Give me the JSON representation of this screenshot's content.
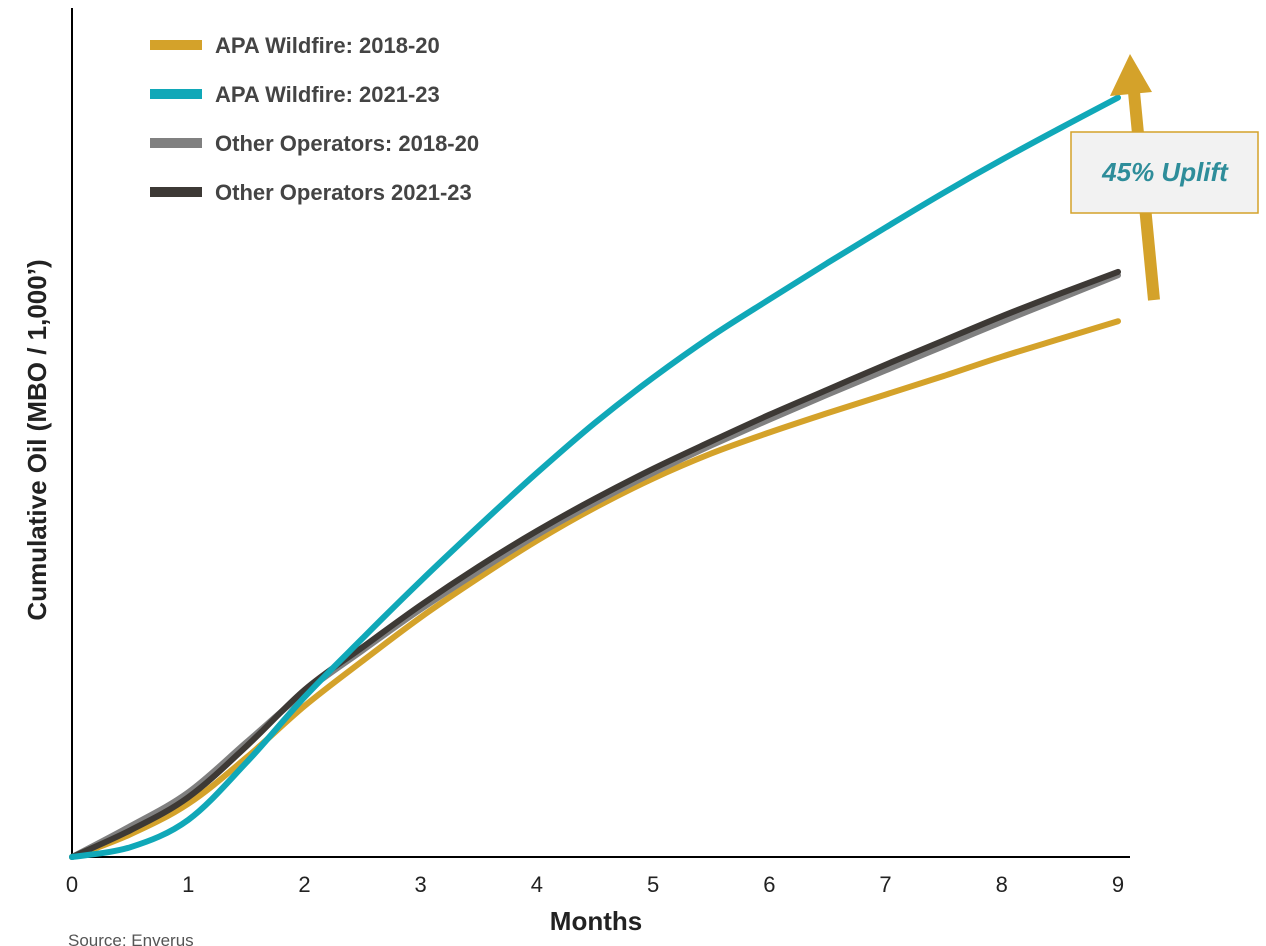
{
  "chart_data": {
    "type": "line",
    "xlabel": "Months",
    "ylabel": "Cumulative Oil (MBO / 1,000’)",
    "x_ticks": [
      "0",
      "1",
      "2",
      "3",
      "4",
      "5",
      "6",
      "7",
      "8",
      "9"
    ],
    "xlim": [
      0,
      9
    ],
    "ylim": [
      0,
      100
    ],
    "y_tick_labels_shown": false,
    "grid": false,
    "legend_position": "top-left",
    "series": [
      {
        "name": "APA Wildfire: 2018-20",
        "color": "#D4A22A",
        "x": [
          0,
          0.5,
          1,
          1.5,
          2,
          2.5,
          3,
          3.5,
          4,
          4.5,
          5,
          5.5,
          6,
          6.5,
          7,
          7.5,
          8,
          8.5,
          9
        ],
        "y": [
          0,
          2.8,
          6.6,
          12.3,
          18.7,
          24.3,
          29.7,
          34.6,
          39.2,
          43.3,
          46.9,
          50.0,
          52.6,
          55.0,
          57.3,
          59.6,
          62.0,
          64.2,
          66.4
        ]
      },
      {
        "name": "APA Wildfire: 2021-23",
        "color": "#10A8B8",
        "x": [
          0,
          0.5,
          1,
          1.5,
          2,
          2.5,
          3,
          3.5,
          4,
          4.5,
          5,
          5.5,
          6,
          6.5,
          7,
          7.5,
          8,
          8.5,
          9
        ],
        "y": [
          0,
          1.2,
          4.6,
          11.7,
          19.8,
          27.1,
          34.2,
          41.0,
          47.6,
          53.8,
          59.4,
          64.5,
          69.1,
          73.6,
          78.0,
          82.3,
          86.4,
          90.3,
          94.1
        ]
      },
      {
        "name": "Other Operators: 2018-20",
        "color": "#808080",
        "x": [
          0,
          0.5,
          1,
          1.5,
          2,
          2.5,
          3,
          3.5,
          4,
          4.5,
          5,
          5.5,
          6,
          6.5,
          7,
          7.5,
          8,
          8.5,
          9
        ],
        "y": [
          0,
          3.8,
          8.0,
          14.2,
          20.4,
          25.6,
          30.7,
          35.4,
          39.9,
          43.9,
          47.6,
          51.0,
          54.2,
          57.3,
          60.3,
          63.3,
          66.3,
          69.2,
          72.1
        ]
      },
      {
        "name": "Other Operators 2021-23",
        "color": "#3D3935",
        "x": [
          0,
          0.5,
          1,
          1.5,
          2,
          2.5,
          3,
          3.5,
          4,
          4.5,
          5,
          5.5,
          6,
          6.5,
          7,
          7.5,
          8,
          8.5,
          9
        ],
        "y": [
          0,
          3.3,
          7.4,
          13.7,
          20.7,
          26.0,
          31.2,
          36.0,
          40.4,
          44.4,
          48.1,
          51.5,
          54.8,
          57.9,
          61.0,
          64.0,
          67.0,
          69.8,
          72.5
        ]
      }
    ],
    "annotations": [
      {
        "text": "45% Uplift",
        "color": "#2E8D9A",
        "box_fill": "#F2F2F2",
        "box_border": "#D4A22A",
        "arrow_color": "#D4A22A"
      }
    ],
    "source": "Source: Enverus"
  }
}
